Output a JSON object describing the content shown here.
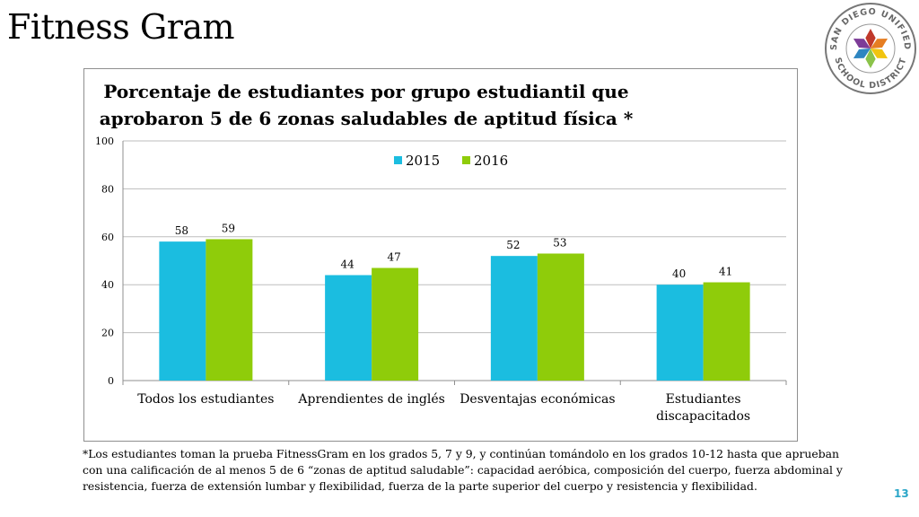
{
  "slide": {
    "title": "Fitness Gram",
    "page_number": "13",
    "footnote": "*Los estudiantes toman la prueba FitnessGram en los grados 5, 7 y 9, y continúan tomándolo en los grados 10-12 hasta que aprueban con una calificación de al menos 5 de 6 “zonas de aptitud saludable”: capacidad aeróbica,  composición del cuerpo, fuerza abdominal y resistencia, fuerza de extensión lumbar y flexibilidad, fuerza de la parte superior del cuerpo y resistencia y flexibilidad."
  },
  "logo": {
    "top_text": "SAN DIEGO UNIFIED",
    "bottom_text": "SCHOOL DISTRICT",
    "colors": [
      "#c0392b",
      "#e67e22",
      "#f1c40f",
      "#8bc34a",
      "#2e86c1",
      "#7d3c98"
    ]
  },
  "chart_data": {
    "type": "bar",
    "title_lines": [
      "Porcentaje de estudiantes por grupo estudiantil que",
      "aprobaron 5 de 6 zonas saludables de aptitud física *"
    ],
    "categories": [
      [
        "Todos los estudiantes"
      ],
      [
        "Aprendientes de inglés"
      ],
      [
        "Desventajas económicas"
      ],
      [
        "Estudiantes",
        "discapacitados"
      ]
    ],
    "series": [
      {
        "name": "2015",
        "color": "#1bbde0",
        "values": [
          58,
          44,
          52,
          40
        ]
      },
      {
        "name": "2016",
        "color": "#8fcc0a",
        "values": [
          59,
          47,
          53,
          41
        ]
      }
    ],
    "ylim": [
      0,
      100
    ],
    "yticks": [
      0,
      20,
      40,
      60,
      80,
      100
    ],
    "grid": true,
    "legend": "top-center",
    "xlabel": "",
    "ylabel": ""
  }
}
